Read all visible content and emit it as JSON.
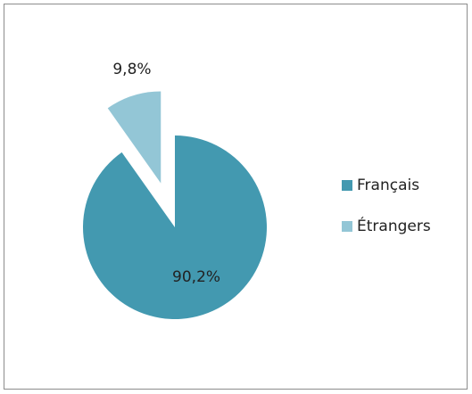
{
  "chart_data": {
    "type": "pie",
    "categories": [
      "Français",
      "Étrangers"
    ],
    "values": [
      90.2,
      9.8
    ],
    "value_labels": [
      "90,2%",
      "9,8%"
    ],
    "colors": [
      "#4399b0",
      "#93c6d6"
    ],
    "exploded": [
      false,
      true
    ],
    "legend": "right"
  }
}
